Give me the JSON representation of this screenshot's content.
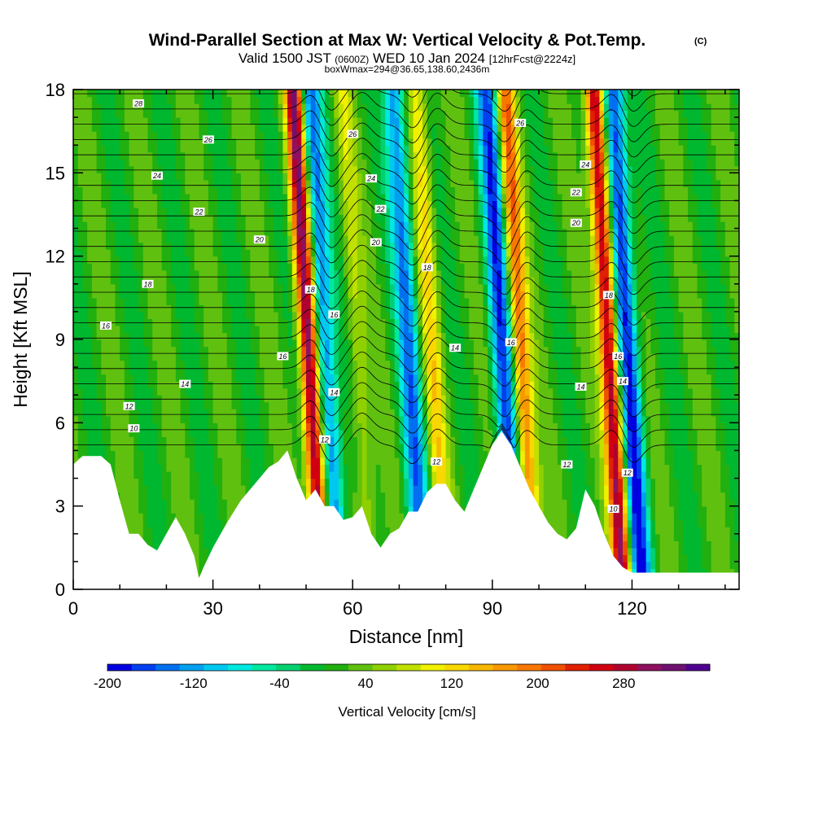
{
  "chart_data": {
    "type": "heatmap",
    "title": "Wind-Parallel Section at Max W: Vertical Velocity & Pot.Temp.",
    "title_mark": "(C)",
    "subtitle": {
      "part1": "Valid 1500 JST",
      "part2": "(0600Z)",
      "part3": "WED 10 Jan 2024",
      "part4": "[12hrFcst@2224z]"
    },
    "info_line": "boxWmax=294@36.65,138.60,2436m",
    "xlabel": "Distance [nm]",
    "ylabel": "Height [Kft MSL]",
    "xlim": [
      0,
      143
    ],
    "ylim": [
      0,
      18
    ],
    "x_ticks": [
      0,
      30,
      60,
      90,
      120
    ],
    "y_ticks": [
      0,
      3,
      6,
      9,
      12,
      15,
      18
    ],
    "colorbar": {
      "label": "Vertical Velocity [cm/s]",
      "range": [
        -200,
        360
      ],
      "tick_values": [
        -200,
        -120,
        -40,
        40,
        120,
        200,
        280
      ],
      "colors": [
        "#0000e0",
        "#0040f0",
        "#0070f0",
        "#00a0f0",
        "#00c8f0",
        "#00e8e0",
        "#00e8a0",
        "#00d070",
        "#00b830",
        "#20b010",
        "#60c010",
        "#90d000",
        "#c0e000",
        "#f0f000",
        "#f8d800",
        "#f8b800",
        "#f89800",
        "#f87800",
        "#f05000",
        "#e02000",
        "#d00010",
        "#b00030",
        "#901060",
        "#701070",
        "#500090"
      ]
    },
    "updrafts": [
      {
        "x": 51.5,
        "w": 300
      },
      {
        "x": 62,
        "w": 60
      },
      {
        "x": 78,
        "w": 100
      },
      {
        "x": 97,
        "w": 180
      },
      {
        "x": 116,
        "w": 280
      }
    ],
    "downdrafts": [
      {
        "x": 55,
        "w": -160
      },
      {
        "x": 73,
        "w": -150
      },
      {
        "x": 93,
        "w": -180
      },
      {
        "x": 120,
        "w": -200
      }
    ],
    "terrain": {
      "x": [
        0,
        2,
        4,
        6,
        8,
        10,
        12,
        14,
        16,
        18,
        20,
        22,
        24,
        26,
        27,
        28,
        30,
        33,
        36,
        39,
        42,
        44,
        46,
        48,
        50,
        52,
        54,
        56,
        58,
        60,
        62,
        64,
        66,
        68,
        70,
        72,
        74,
        76,
        78,
        80,
        82,
        84,
        86,
        88,
        90,
        92,
        94,
        96,
        98,
        100,
        102,
        104,
        106,
        108,
        110,
        112,
        114,
        116,
        118,
        120,
        122,
        124,
        126,
        128,
        130,
        132,
        134,
        136,
        138,
        140,
        143
      ],
      "height": [
        4.5,
        4.8,
        4.8,
        4.8,
        4.5,
        3.2,
        2.0,
        2.0,
        1.6,
        1.4,
        2.0,
        2.6,
        2.0,
        1.2,
        0.4,
        0.8,
        1.5,
        2.4,
        3.2,
        3.8,
        4.4,
        4.6,
        5.0,
        4.0,
        3.2,
        3.6,
        3.0,
        3.0,
        2.5,
        2.6,
        3.0,
        2.0,
        1.5,
        2.0,
        2.2,
        2.8,
        2.8,
        3.5,
        3.8,
        3.8,
        3.2,
        2.8,
        3.6,
        4.4,
        5.2,
        5.7,
        5.2,
        4.4,
        3.6,
        3.0,
        2.4,
        2.0,
        1.8,
        2.2,
        3.6,
        3.0,
        2.0,
        1.2,
        0.8,
        0.6,
        0.6,
        0.6,
        0.6,
        0.6,
        0.6,
        0.6,
        0.6,
        0.6,
        0.6,
        0.6,
        0.6
      ]
    },
    "isentropes": {
      "levels": [
        10,
        12,
        14,
        16,
        18,
        20,
        22,
        24,
        26,
        28
      ],
      "labels": [
        {
          "text": "28",
          "x": 14,
          "y": 17.5
        },
        {
          "text": "26",
          "x": 29,
          "y": 16.2
        },
        {
          "text": "24",
          "x": 18,
          "y": 14.9
        },
        {
          "text": "22",
          "x": 27,
          "y": 13.6
        },
        {
          "text": "20",
          "x": 40,
          "y": 12.6
        },
        {
          "text": "18",
          "x": 16,
          "y": 11.0
        },
        {
          "text": "16",
          "x": 7,
          "y": 9.5
        },
        {
          "text": "14",
          "x": 24,
          "y": 7.4
        },
        {
          "text": "12",
          "x": 12,
          "y": 6.6
        },
        {
          "text": "10",
          "x": 13,
          "y": 5.8
        },
        {
          "text": "26",
          "x": 60,
          "y": 16.4
        },
        {
          "text": "24",
          "x": 64,
          "y": 14.8
        },
        {
          "text": "22",
          "x": 66,
          "y": 13.7
        },
        {
          "text": "20",
          "x": 65,
          "y": 12.5
        },
        {
          "text": "18",
          "x": 51,
          "y": 10.8
        },
        {
          "text": "16",
          "x": 56,
          "y": 9.9
        },
        {
          "text": "16",
          "x": 45,
          "y": 8.4
        },
        {
          "text": "14",
          "x": 56,
          "y": 7.1
        },
        {
          "text": "12",
          "x": 54,
          "y": 5.4
        },
        {
          "text": "18",
          "x": 76,
          "y": 11.6
        },
        {
          "text": "14",
          "x": 82,
          "y": 8.7
        },
        {
          "text": "12",
          "x": 78,
          "y": 4.6
        },
        {
          "text": "26",
          "x": 96,
          "y": 16.8
        },
        {
          "text": "16",
          "x": 94,
          "y": 8.9
        },
        {
          "text": "24",
          "x": 110,
          "y": 15.3
        },
        {
          "text": "22",
          "x": 108,
          "y": 14.3
        },
        {
          "text": "20",
          "x": 108,
          "y": 13.2
        },
        {
          "text": "18",
          "x": 115,
          "y": 10.6
        },
        {
          "text": "16",
          "x": 117,
          "y": 8.4
        },
        {
          "text": "14",
          "x": 109,
          "y": 7.3
        },
        {
          "text": "14",
          "x": 118,
          "y": 7.5
        },
        {
          "text": "12",
          "x": 106,
          "y": 4.5
        },
        {
          "text": "12",
          "x": 119,
          "y": 4.2
        },
        {
          "text": "10",
          "x": 116,
          "y": 2.9
        }
      ]
    }
  }
}
